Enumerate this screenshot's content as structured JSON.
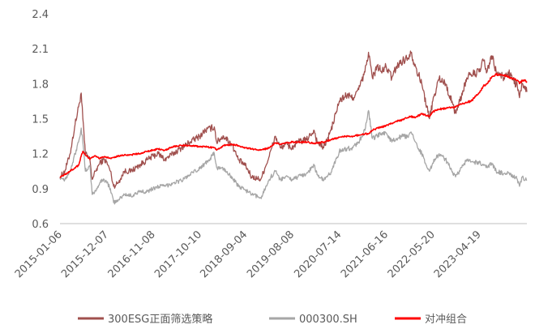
{
  "chart_data": {
    "type": "line",
    "title": "",
    "xlabel": "",
    "ylabel": "",
    "ylim": [
      0.6,
      2.4
    ],
    "yticks": [
      "2.4",
      "2.1",
      "1.8",
      "1.5",
      "1.2",
      "0.9",
      "0.6"
    ],
    "grid": false,
    "legend_position": "bottom",
    "x": [
      "2015-01-06",
      "2015-12-07",
      "2016-11-08",
      "2017-10-10",
      "2018-09-04",
      "2019-08-08",
      "2020-07-14",
      "2021-06-16",
      "2022-05-20",
      "2023-04-19"
    ],
    "x_end": "2024-03-29",
    "series": [
      {
        "name": "300ESG正面筛选策略",
        "color": "#A0504E",
        "points": [
          [
            "2015-01-06",
            1.0
          ],
          [
            "2015-02-10",
            1.05
          ],
          [
            "2015-03-20",
            1.2
          ],
          [
            "2015-04-25",
            1.45
          ],
          [
            "2015-05-20",
            1.6
          ],
          [
            "2015-06-08",
            1.72
          ],
          [
            "2015-06-20",
            1.5
          ],
          [
            "2015-07-08",
            1.2
          ],
          [
            "2015-08-10",
            1.15
          ],
          [
            "2015-08-26",
            0.98
          ],
          [
            "2015-09-20",
            1.05
          ],
          [
            "2015-10-20",
            1.12
          ],
          [
            "2015-11-20",
            1.15
          ],
          [
            "2015-12-07",
            1.13
          ],
          [
            "2016-01-05",
            1.05
          ],
          [
            "2016-01-28",
            0.92
          ],
          [
            "2016-03-01",
            0.95
          ],
          [
            "2016-04-15",
            1.05
          ],
          [
            "2016-06-01",
            1.05
          ],
          [
            "2016-08-01",
            1.1
          ],
          [
            "2016-10-01",
            1.15
          ],
          [
            "2016-11-08",
            1.18
          ],
          [
            "2016-12-15",
            1.2
          ],
          [
            "2017-02-01",
            1.15
          ],
          [
            "2017-04-01",
            1.2
          ],
          [
            "2017-06-01",
            1.25
          ],
          [
            "2017-08-01",
            1.3
          ],
          [
            "2017-10-10",
            1.35
          ],
          [
            "2017-11-20",
            1.4
          ],
          [
            "2018-01-24",
            1.43
          ],
          [
            "2018-02-10",
            1.3
          ],
          [
            "2018-04-01",
            1.35
          ],
          [
            "2018-06-01",
            1.28
          ],
          [
            "2018-07-15",
            1.15
          ],
          [
            "2018-09-04",
            1.1
          ],
          [
            "2018-10-20",
            1.0
          ],
          [
            "2018-12-25",
            0.98
          ],
          [
            "2019-02-25",
            1.18
          ],
          [
            "2019-04-08",
            1.35
          ],
          [
            "2019-05-15",
            1.25
          ],
          [
            "2019-06-20",
            1.28
          ],
          [
            "2019-08-08",
            1.25
          ],
          [
            "2019-09-20",
            1.3
          ],
          [
            "2019-11-20",
            1.32
          ],
          [
            "2020-01-15",
            1.4
          ],
          [
            "2020-02-05",
            1.3
          ],
          [
            "2020-03-23",
            1.25
          ],
          [
            "2020-05-15",
            1.4
          ],
          [
            "2020-07-14",
            1.65
          ],
          [
            "2020-09-01",
            1.7
          ],
          [
            "2020-10-20",
            1.68
          ],
          [
            "2020-12-01",
            1.75
          ],
          [
            "2021-01-15",
            1.9
          ],
          [
            "2021-02-10",
            2.07
          ],
          [
            "2021-03-10",
            1.85
          ],
          [
            "2021-04-15",
            1.95
          ],
          [
            "2021-05-20",
            1.9
          ],
          [
            "2021-06-16",
            1.95
          ],
          [
            "2021-07-28",
            1.85
          ],
          [
            "2021-09-01",
            1.95
          ],
          [
            "2021-10-15",
            2.0
          ],
          [
            "2021-11-20",
            2.02
          ],
          [
            "2021-12-10",
            2.08
          ],
          [
            "2022-01-15",
            1.95
          ],
          [
            "2022-03-01",
            1.8
          ],
          [
            "2022-04-26",
            1.5
          ],
          [
            "2022-05-20",
            1.65
          ],
          [
            "2022-07-05",
            1.85
          ],
          [
            "2022-08-20",
            1.8
          ],
          [
            "2022-10-31",
            1.55
          ],
          [
            "2022-12-01",
            1.65
          ],
          [
            "2023-01-20",
            1.85
          ],
          [
            "2023-02-20",
            1.88
          ],
          [
            "2023-04-19",
            1.9
          ],
          [
            "2023-05-20",
            2.0
          ],
          [
            "2023-06-15",
            1.9
          ],
          [
            "2023-07-20",
            2.04
          ],
          [
            "2023-08-20",
            1.9
          ],
          [
            "2023-10-15",
            1.85
          ],
          [
            "2023-11-15",
            1.9
          ],
          [
            "2024-01-20",
            1.78
          ],
          [
            "2024-02-05",
            1.68
          ],
          [
            "2024-02-25",
            1.8
          ],
          [
            "2024-03-29",
            1.73
          ]
        ]
      },
      {
        "name": "000300.SH",
        "color": "#A6A6A6",
        "points": [
          [
            "2015-01-06",
            1.0
          ],
          [
            "2015-02-10",
            0.98
          ],
          [
            "2015-03-20",
            1.05
          ],
          [
            "2015-04-25",
            1.2
          ],
          [
            "2015-05-20",
            1.3
          ],
          [
            "2015-06-08",
            1.42
          ],
          [
            "2015-06-20",
            1.3
          ],
          [
            "2015-07-08",
            1.05
          ],
          [
            "2015-08-10",
            1.1
          ],
          [
            "2015-08-26",
            0.85
          ],
          [
            "2015-09-20",
            0.88
          ],
          [
            "2015-10-20",
            0.95
          ],
          [
            "2015-11-20",
            0.98
          ],
          [
            "2015-12-07",
            0.96
          ],
          [
            "2016-01-05",
            0.9
          ],
          [
            "2016-01-28",
            0.78
          ],
          [
            "2016-03-01",
            0.8
          ],
          [
            "2016-04-15",
            0.85
          ],
          [
            "2016-06-01",
            0.84
          ],
          [
            "2016-08-01",
            0.87
          ],
          [
            "2016-10-01",
            0.88
          ],
          [
            "2016-11-08",
            0.9
          ],
          [
            "2016-12-15",
            0.92
          ],
          [
            "2017-02-01",
            0.92
          ],
          [
            "2017-04-01",
            0.95
          ],
          [
            "2017-06-01",
            0.97
          ],
          [
            "2017-08-01",
            1.02
          ],
          [
            "2017-10-10",
            1.07
          ],
          [
            "2017-11-20",
            1.12
          ],
          [
            "2018-01-24",
            1.2
          ],
          [
            "2018-02-10",
            1.08
          ],
          [
            "2018-04-01",
            1.07
          ],
          [
            "2018-06-01",
            1.0
          ],
          [
            "2018-07-15",
            0.92
          ],
          [
            "2018-09-04",
            0.89
          ],
          [
            "2018-10-20",
            0.85
          ],
          [
            "2018-12-25",
            0.82
          ],
          [
            "2019-02-25",
            0.98
          ],
          [
            "2019-04-08",
            1.05
          ],
          [
            "2019-05-15",
            0.98
          ],
          [
            "2019-06-20",
            1.0
          ],
          [
            "2019-08-08",
            0.98
          ],
          [
            "2019-09-20",
            1.0
          ],
          [
            "2019-11-20",
            1.03
          ],
          [
            "2020-01-15",
            1.1
          ],
          [
            "2020-02-05",
            1.02
          ],
          [
            "2020-03-23",
            0.97
          ],
          [
            "2020-05-15",
            1.04
          ],
          [
            "2020-07-14",
            1.22
          ],
          [
            "2020-09-01",
            1.24
          ],
          [
            "2020-10-20",
            1.25
          ],
          [
            "2020-12-01",
            1.3
          ],
          [
            "2021-01-15",
            1.4
          ],
          [
            "2021-02-10",
            1.57
          ],
          [
            "2021-03-10",
            1.33
          ],
          [
            "2021-04-15",
            1.35
          ],
          [
            "2021-05-20",
            1.38
          ],
          [
            "2021-06-16",
            1.38
          ],
          [
            "2021-07-28",
            1.3
          ],
          [
            "2021-09-01",
            1.33
          ],
          [
            "2021-10-15",
            1.35
          ],
          [
            "2021-11-20",
            1.34
          ],
          [
            "2021-12-10",
            1.38
          ],
          [
            "2022-01-15",
            1.3
          ],
          [
            "2022-03-01",
            1.2
          ],
          [
            "2022-04-26",
            1.05
          ],
          [
            "2022-05-20",
            1.12
          ],
          [
            "2022-07-05",
            1.2
          ],
          [
            "2022-08-20",
            1.15
          ],
          [
            "2022-10-31",
            1.0
          ],
          [
            "2022-12-01",
            1.05
          ],
          [
            "2023-01-20",
            1.15
          ],
          [
            "2023-02-20",
            1.13
          ],
          [
            "2023-04-19",
            1.12
          ],
          [
            "2023-05-20",
            1.1
          ],
          [
            "2023-06-15",
            1.08
          ],
          [
            "2023-07-20",
            1.12
          ],
          [
            "2023-08-20",
            1.05
          ],
          [
            "2023-10-15",
            1.03
          ],
          [
            "2023-11-15",
            1.04
          ],
          [
            "2024-01-20",
            0.98
          ],
          [
            "2024-02-05",
            0.92
          ],
          [
            "2024-02-25",
            1.0
          ],
          [
            "2024-03-29",
            0.97
          ]
        ]
      },
      {
        "name": "对冲组合",
        "color": "#FF0000",
        "points": [
          [
            "2015-01-06",
            1.0
          ],
          [
            "2015-02-10",
            1.02
          ],
          [
            "2015-03-20",
            1.05
          ],
          [
            "2015-04-25",
            1.08
          ],
          [
            "2015-05-20",
            1.1
          ],
          [
            "2015-06-08",
            1.18
          ],
          [
            "2015-06-20",
            1.22
          ],
          [
            "2015-07-08",
            1.19
          ],
          [
            "2015-08-10",
            1.15
          ],
          [
            "2015-08-26",
            1.17
          ],
          [
            "2015-09-20",
            1.18
          ],
          [
            "2015-10-20",
            1.16
          ],
          [
            "2015-11-20",
            1.17
          ],
          [
            "2015-12-07",
            1.17
          ],
          [
            "2016-01-05",
            1.16
          ],
          [
            "2016-01-28",
            1.17
          ],
          [
            "2016-03-01",
            1.18
          ],
          [
            "2016-04-15",
            1.19
          ],
          [
            "2016-06-01",
            1.19
          ],
          [
            "2016-08-01",
            1.2
          ],
          [
            "2016-10-01",
            1.22
          ],
          [
            "2016-11-08",
            1.23
          ],
          [
            "2016-12-15",
            1.24
          ],
          [
            "2017-02-01",
            1.23
          ],
          [
            "2017-04-01",
            1.26
          ],
          [
            "2017-06-01",
            1.27
          ],
          [
            "2017-08-01",
            1.27
          ],
          [
            "2017-10-10",
            1.26
          ],
          [
            "2017-11-20",
            1.26
          ],
          [
            "2018-01-24",
            1.25
          ],
          [
            "2018-02-10",
            1.23
          ],
          [
            "2018-04-01",
            1.27
          ],
          [
            "2018-06-01",
            1.28
          ],
          [
            "2018-07-15",
            1.27
          ],
          [
            "2018-09-04",
            1.25
          ],
          [
            "2018-10-20",
            1.24
          ],
          [
            "2018-12-25",
            1.23
          ],
          [
            "2019-02-25",
            1.25
          ],
          [
            "2019-04-08",
            1.29
          ],
          [
            "2019-05-15",
            1.28
          ],
          [
            "2019-06-20",
            1.29
          ],
          [
            "2019-08-08",
            1.3
          ],
          [
            "2019-09-20",
            1.3
          ],
          [
            "2019-11-20",
            1.3
          ],
          [
            "2020-01-15",
            1.29
          ],
          [
            "2020-02-05",
            1.29
          ],
          [
            "2020-03-23",
            1.3
          ],
          [
            "2020-05-15",
            1.32
          ],
          [
            "2020-07-14",
            1.34
          ],
          [
            "2020-09-01",
            1.35
          ],
          [
            "2020-10-20",
            1.35
          ],
          [
            "2020-12-01",
            1.36
          ],
          [
            "2021-01-15",
            1.37
          ],
          [
            "2021-02-10",
            1.37
          ],
          [
            "2021-03-10",
            1.4
          ],
          [
            "2021-04-15",
            1.42
          ],
          [
            "2021-05-20",
            1.43
          ],
          [
            "2021-06-16",
            1.44
          ],
          [
            "2021-07-28",
            1.46
          ],
          [
            "2021-09-01",
            1.48
          ],
          [
            "2021-10-15",
            1.49
          ],
          [
            "2021-11-20",
            1.51
          ],
          [
            "2021-12-10",
            1.52
          ],
          [
            "2022-01-15",
            1.51
          ],
          [
            "2022-03-01",
            1.54
          ],
          [
            "2022-04-26",
            1.52
          ],
          [
            "2022-05-20",
            1.56
          ],
          [
            "2022-07-05",
            1.58
          ],
          [
            "2022-08-20",
            1.59
          ],
          [
            "2022-10-31",
            1.6
          ],
          [
            "2022-12-01",
            1.62
          ],
          [
            "2023-01-20",
            1.64
          ],
          [
            "2023-02-20",
            1.65
          ],
          [
            "2023-04-19",
            1.72
          ],
          [
            "2023-05-20",
            1.78
          ],
          [
            "2023-06-15",
            1.8
          ],
          [
            "2023-07-20",
            1.86
          ],
          [
            "2023-08-20",
            1.88
          ],
          [
            "2023-10-15",
            1.87
          ],
          [
            "2023-11-15",
            1.86
          ],
          [
            "2024-01-20",
            1.83
          ],
          [
            "2024-02-05",
            1.8
          ],
          [
            "2024-02-25",
            1.83
          ],
          [
            "2024-03-29",
            1.82
          ]
        ]
      }
    ]
  }
}
